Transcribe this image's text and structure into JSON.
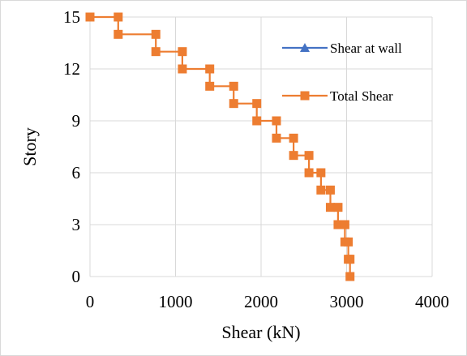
{
  "chart_data": {
    "type": "line",
    "title": "",
    "xlabel": "Shear (kN)",
    "ylabel": "Story",
    "xlim": [
      0,
      4000
    ],
    "ylim": [
      0,
      15
    ],
    "x_ticks": [
      0,
      1000,
      2000,
      3000,
      4000
    ],
    "y_ticks": [
      0,
      3,
      6,
      9,
      12,
      15
    ],
    "x_tick_labels": [
      "0",
      "1000",
      "2000",
      "3000",
      "4000"
    ],
    "y_tick_labels": [
      "0",
      "3",
      "6",
      "9",
      "12",
      "15"
    ],
    "grid": true,
    "legend_position": "top-right",
    "series": [
      {
        "name": "Shear at wall",
        "color": "#4472C4",
        "marker": "triangle",
        "points": []
      },
      {
        "name": "Total Shear",
        "color": "#ED7D31",
        "marker": "square",
        "points": [
          [
            0,
            15
          ],
          [
            330,
            15
          ],
          [
            330,
            14
          ],
          [
            770,
            14
          ],
          [
            770,
            13
          ],
          [
            1080,
            13
          ],
          [
            1080,
            12
          ],
          [
            1400,
            12
          ],
          [
            1400,
            11
          ],
          [
            1680,
            11
          ],
          [
            1680,
            10
          ],
          [
            1950,
            10
          ],
          [
            1950,
            9
          ],
          [
            2180,
            9
          ],
          [
            2180,
            8
          ],
          [
            2380,
            8
          ],
          [
            2380,
            7
          ],
          [
            2560,
            7
          ],
          [
            2560,
            6
          ],
          [
            2700,
            6
          ],
          [
            2700,
            5
          ],
          [
            2810,
            5
          ],
          [
            2810,
            4
          ],
          [
            2900,
            4
          ],
          [
            2900,
            3
          ],
          [
            2980,
            3
          ],
          [
            2980,
            2
          ],
          [
            3020,
            2
          ],
          [
            3020,
            1
          ],
          [
            3040,
            1
          ],
          [
            3040,
            0
          ]
        ]
      }
    ]
  }
}
